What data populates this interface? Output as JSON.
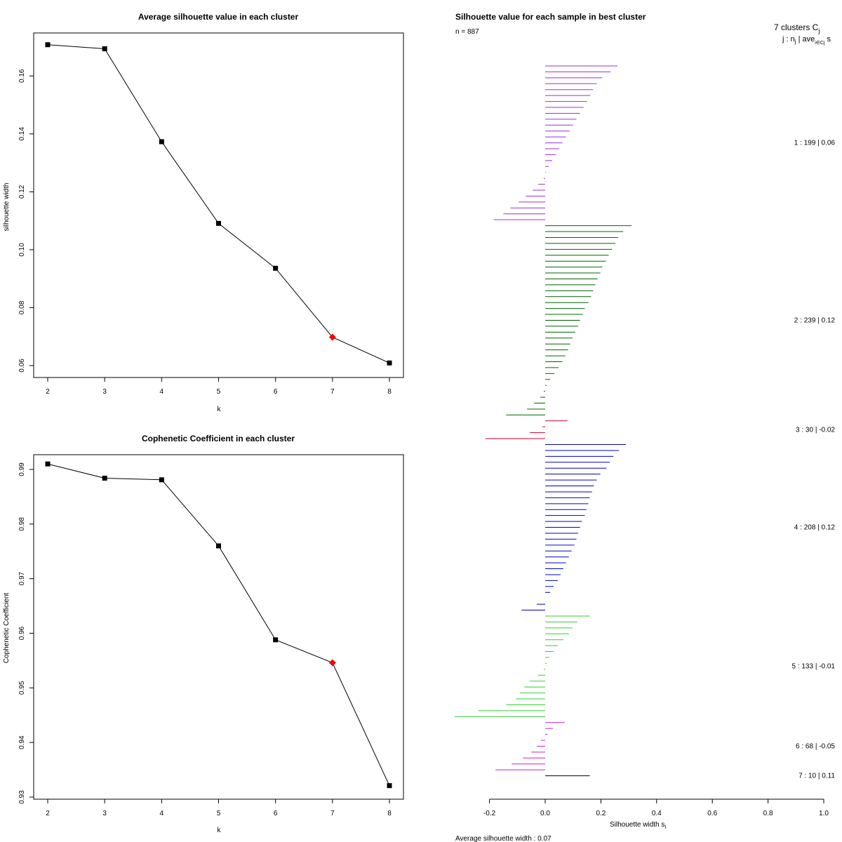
{
  "chart_data": [
    {
      "type": "line",
      "title": "Average silhouette value in each cluster",
      "xlabel": "k",
      "ylabel": "silhouette width",
      "x": [
        2,
        3,
        4,
        5,
        6,
        7,
        8
      ],
      "values": [
        0.1708,
        0.1694,
        0.1373,
        0.1091,
        0.0936,
        0.0698,
        0.0609
      ],
      "highlight_k": 7,
      "xlim": [
        2,
        8
      ],
      "ylim": [
        0.06,
        0.17
      ],
      "xticks": [
        "2",
        "3",
        "4",
        "5",
        "6",
        "7",
        "8"
      ],
      "yticks": [
        "0.06",
        "0.08",
        "0.10",
        "0.12",
        "0.14",
        "0.16"
      ],
      "colors": {
        "line": "#000000",
        "point": "#000000",
        "highlight": "#ff0000"
      }
    },
    {
      "type": "line",
      "title": "Cophenetic Coefficient in each cluster",
      "xlabel": "k",
      "ylabel": "Cophenetic Coefficient",
      "x": [
        2,
        3,
        4,
        5,
        6,
        7,
        8
      ],
      "values": [
        0.991,
        0.9884,
        0.9881,
        0.976,
        0.9588,
        0.9546,
        0.9321
      ],
      "highlight_k": 7,
      "xlim": [
        2,
        8
      ],
      "ylim": [
        0.93,
        0.99
      ],
      "xticks": [
        "2",
        "3",
        "4",
        "5",
        "6",
        "7",
        "8"
      ],
      "yticks": [
        "0.93",
        "0.94",
        "0.95",
        "0.96",
        "0.97",
        "0.98",
        "0.99"
      ],
      "colors": {
        "line": "#000000",
        "point": "#000000",
        "highlight": "#ff0000"
      }
    },
    {
      "type": "bar",
      "orientation": "horizontal",
      "title": "Silhouette value for each sample in best cluster",
      "n_label": "n = 887",
      "header_label": "7 clusters  C",
      "header_sub": "j",
      "col_header": "j :  n",
      "col_header_tail": " | ave",
      "col_header_sub": "i∈Cj",
      "col_header_s": "s",
      "xlabel": "Silhouette width s",
      "xlabel_sub": "i",
      "xlim": [
        -0.2,
        1.0
      ],
      "xticks": [
        "-0.2",
        "0.0",
        "0.2",
        "0.4",
        "0.6",
        "0.8",
        "1.0"
      ],
      "average_label": "Average silhouette width :  0.07",
      "clusters": [
        {
          "label": "1 :   199  |  0.06",
          "color": "#9b30d8",
          "values": [
            0.26,
            0.235,
            0.205,
            0.185,
            0.172,
            0.162,
            0.15,
            0.138,
            0.125,
            0.112,
            0.1,
            0.088,
            0.075,
            0.062,
            0.05,
            0.038,
            0.025,
            0.012,
            0.002,
            -0.005,
            -0.025,
            -0.045,
            -0.07,
            -0.095,
            -0.125,
            -0.15,
            -0.185
          ]
        },
        {
          "label": "2 :   239  |  0.12",
          "color": "#006400",
          "values": [
            0.31,
            0.28,
            0.262,
            0.252,
            0.24,
            0.228,
            0.218,
            0.205,
            0.198,
            0.188,
            0.18,
            0.172,
            0.165,
            0.155,
            0.142,
            0.135,
            0.125,
            0.118,
            0.108,
            0.098,
            0.09,
            0.082,
            0.072,
            0.062,
            0.048,
            0.033,
            0.018,
            0.005,
            -0.005,
            -0.018,
            -0.04,
            -0.065,
            -0.14
          ]
        },
        {
          "label": "3 :   30  |  -0.02",
          "color": "#cc0033",
          "values": [
            0.08,
            -0.01,
            -0.055,
            -0.215
          ]
        },
        {
          "label": "4 :   208  |  0.12",
          "color": "#0000cc",
          "values": [
            0.29,
            0.265,
            0.245,
            0.232,
            0.22,
            0.198,
            0.185,
            0.175,
            0.168,
            0.16,
            0.155,
            0.148,
            0.142,
            0.132,
            0.125,
            0.118,
            0.112,
            0.105,
            0.095,
            0.085,
            0.075,
            0.065,
            0.055,
            0.045,
            0.03,
            0.018,
            0.0,
            -0.03,
            -0.085
          ]
        },
        {
          "label": "5 :   133  |  -0.01",
          "color": "#33cc33",
          "values": [
            0.16,
            0.115,
            0.098,
            0.085,
            0.065,
            0.045,
            0.03,
            0.015,
            0.005,
            -0.005,
            -0.025,
            -0.055,
            -0.075,
            -0.09,
            -0.105,
            -0.14,
            -0.24,
            -0.325
          ]
        },
        {
          "label": "6 :   68  |  -0.05",
          "color": "#cc22cc",
          "values": [
            0.07,
            0.028,
            0.008,
            -0.015,
            -0.03,
            -0.05,
            -0.08,
            -0.12,
            -0.178
          ]
        },
        {
          "label": "7 :   10  |  0.11",
          "color": "#000000",
          "values": [
            0.16
          ]
        }
      ]
    }
  ]
}
